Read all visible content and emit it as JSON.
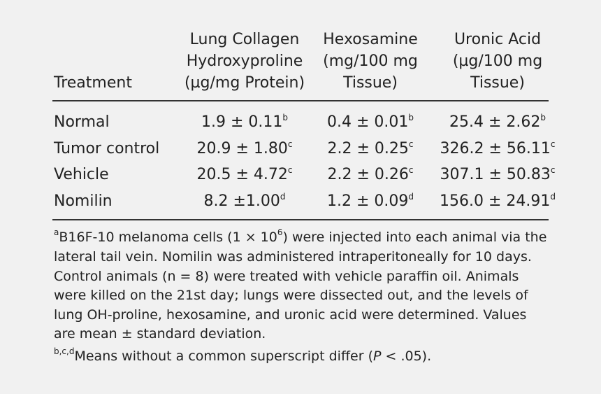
{
  "table": {
    "header": [
      {
        "lines": [
          "Treatment"
        ]
      },
      {
        "lines": [
          "Lung Collagen",
          "Hydroxyproline",
          "(µg/mg Protein)"
        ]
      },
      {
        "lines": [
          "Hexosamine",
          "(mg/100 mg",
          "Tissue)"
        ]
      },
      {
        "lines": [
          "Uronic Acid",
          "(µg/100 mg",
          "Tissue)"
        ]
      }
    ],
    "rows": [
      {
        "treatment": "Normal",
        "cells": [
          {
            "value": "1.9 ± 0.11",
            "sup": "b"
          },
          {
            "value": "0.4 ± 0.01",
            "sup": "b"
          },
          {
            "value": "25.4 ± 2.62",
            "sup": "b"
          }
        ]
      },
      {
        "treatment": "Tumor control",
        "cells": [
          {
            "value": "20.9 ± 1.80",
            "sup": "c"
          },
          {
            "value": "2.2 ± 0.25",
            "sup": "c"
          },
          {
            "value": "326.2 ± 56.11",
            "sup": "c"
          }
        ]
      },
      {
        "treatment": "Vehicle",
        "cells": [
          {
            "value": "20.5 ± 4.72",
            "sup": "c"
          },
          {
            "value": "2.2 ± 0.26",
            "sup": "c"
          },
          {
            "value": "307.1 ± 50.83",
            "sup": "c"
          }
        ]
      },
      {
        "treatment": "Nomilin",
        "cells": [
          {
            "value": "8.2 ±1.00",
            "sup": "d"
          },
          {
            "value": "1.2 ± 0.09",
            "sup": "d"
          },
          {
            "value": "156.0 ± 24.91",
            "sup": "d"
          }
        ]
      }
    ]
  },
  "footnotes": {
    "a": {
      "marker": "a",
      "before": "B16F-10 melanoma cells (1 × 10",
      "exponent": "6",
      "after": ") were injected into each animal via the",
      "lines": [
        "lateral tail vein. Nomilin was administered intraperitoneally for 10 days.",
        "Control animals (n = 8) were treated with vehicle paraffin oil. Animals",
        "were killed on the 21st day; lungs were dissected out, and the levels of",
        "lung OH-proline, hexosamine, and uronic acid were determined. Values",
        "are mean ± standard deviation."
      ]
    },
    "b": {
      "marker": "b,c,d",
      "before": "Means without a common superscript differ (",
      "italic": "P",
      "after": " < .05)."
    }
  }
}
